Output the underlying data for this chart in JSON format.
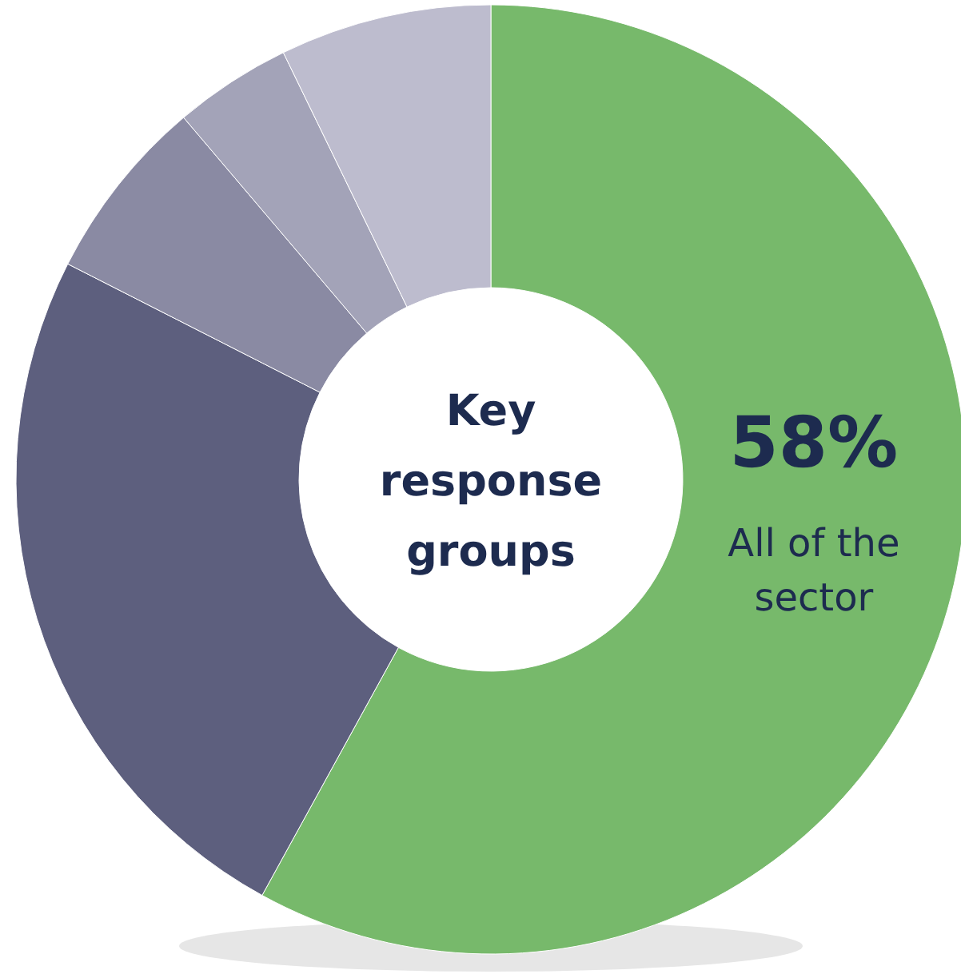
{
  "chart_data": {
    "type": "donut",
    "title": "Key response groups",
    "categories": [
      null,
      null,
      null,
      null,
      null
    ],
    "values": [
      58,
      24.5,
      6.3,
      4,
      7.2
    ],
    "colors": [
      "#77b96b",
      "#5d5f7e",
      "#8a8aa3",
      "#a3a3b8",
      "#bdbcce"
    ],
    "value_labels": [
      "58%",
      null,
      null,
      null,
      null
    ],
    "annotations": [
      "All of the sector"
    ]
  }
}
